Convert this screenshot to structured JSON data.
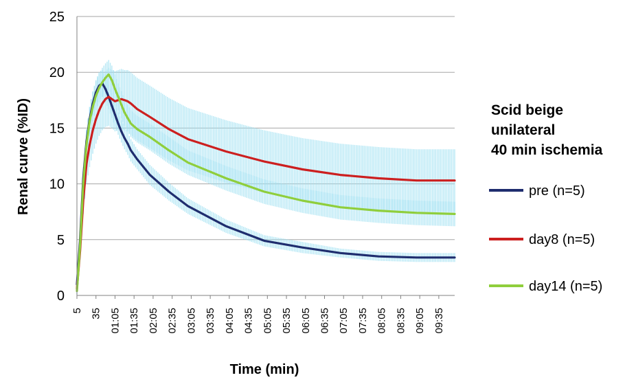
{
  "chart_data": {
    "type": "line",
    "xlabel": "Time (min)",
    "ylabel": "Renal curve (%ID)",
    "ylim": [
      0,
      25
    ],
    "y_ticks": [
      0,
      5,
      10,
      15,
      20,
      25
    ],
    "grid": "horizontal",
    "legend_position": "right",
    "legend_title": [
      "Scid beige",
      "unilateral",
      "40 min ischemia"
    ],
    "x_tick_labels": [
      "5",
      "35",
      "01:05",
      "01:35",
      "02:05",
      "02:35",
      "03:05",
      "03:35",
      "04:05",
      "04:35",
      "05:05",
      "05:35",
      "06:05",
      "06:35",
      "07:05",
      "07:35",
      "08:05",
      "08:35",
      "09:05",
      "09:35"
    ],
    "x_seconds": [
      5,
      10,
      15,
      20,
      25,
      30,
      35,
      40,
      45,
      50,
      55,
      60,
      65,
      70,
      75,
      80,
      85,
      90,
      100,
      120,
      150,
      180,
      240,
      300,
      360,
      420,
      480,
      540,
      600
    ],
    "error_band_color": "#9fe0f2",
    "series": [
      {
        "name": "pre (n=5)",
        "color": "#1f2d6e",
        "values": [
          1.0,
          5.0,
          10.5,
          13.8,
          15.8,
          17.2,
          18.2,
          18.8,
          19.0,
          18.5,
          17.8,
          17.0,
          16.2,
          15.4,
          14.7,
          14.1,
          13.6,
          13.0,
          12.2,
          10.8,
          9.3,
          8.0,
          6.2,
          4.9,
          4.3,
          3.8,
          3.5,
          3.4,
          3.4
        ],
        "error": [
          0.3,
          0.8,
          1.0,
          1.1,
          1.1,
          1.1,
          1.1,
          1.2,
          1.2,
          1.2,
          1.1,
          1.1,
          1.1,
          1.0,
          1.0,
          1.0,
          1.0,
          1.0,
          0.9,
          0.9,
          0.8,
          0.7,
          0.6,
          0.5,
          0.5,
          0.4,
          0.4,
          0.4,
          0.4
        ]
      },
      {
        "name": "day8 (n=5)",
        "color": "#cc1f1f",
        "values": [
          0.6,
          4.0,
          8.5,
          11.8,
          13.5,
          14.8,
          15.8,
          16.6,
          17.2,
          17.6,
          17.8,
          17.6,
          17.4,
          17.5,
          17.6,
          17.5,
          17.4,
          17.2,
          16.7,
          16.0,
          14.9,
          14.0,
          12.9,
          12.0,
          11.3,
          10.8,
          10.5,
          10.3,
          10.3
        ],
        "error": [
          0.3,
          0.8,
          1.2,
          1.8,
          2.0,
          2.1,
          2.2,
          2.3,
          2.4,
          2.5,
          2.6,
          2.6,
          2.7,
          2.7,
          2.7,
          2.7,
          2.8,
          2.8,
          2.8,
          2.8,
          2.8,
          2.8,
          2.8,
          2.8,
          2.8,
          2.8,
          2.8,
          2.8,
          2.8
        ]
      },
      {
        "name": "day14 (n=5)",
        "color": "#8fce3c",
        "values": [
          0.4,
          4.5,
          10.0,
          13.5,
          15.6,
          16.9,
          17.9,
          18.6,
          19.1,
          19.5,
          19.8,
          19.3,
          18.5,
          17.8,
          17.1,
          16.4,
          15.9,
          15.4,
          14.9,
          14.2,
          13.0,
          11.9,
          10.5,
          9.3,
          8.5,
          7.9,
          7.6,
          7.4,
          7.3
        ],
        "error": [
          0.3,
          0.8,
          1.1,
          1.2,
          1.3,
          1.3,
          1.3,
          1.3,
          1.3,
          1.3,
          1.3,
          1.3,
          1.3,
          1.2,
          1.2,
          1.2,
          1.2,
          1.2,
          1.2,
          1.2,
          1.2,
          1.1,
          1.1,
          1.1,
          1.1,
          1.1,
          1.1,
          1.1,
          1.1
        ]
      }
    ]
  }
}
